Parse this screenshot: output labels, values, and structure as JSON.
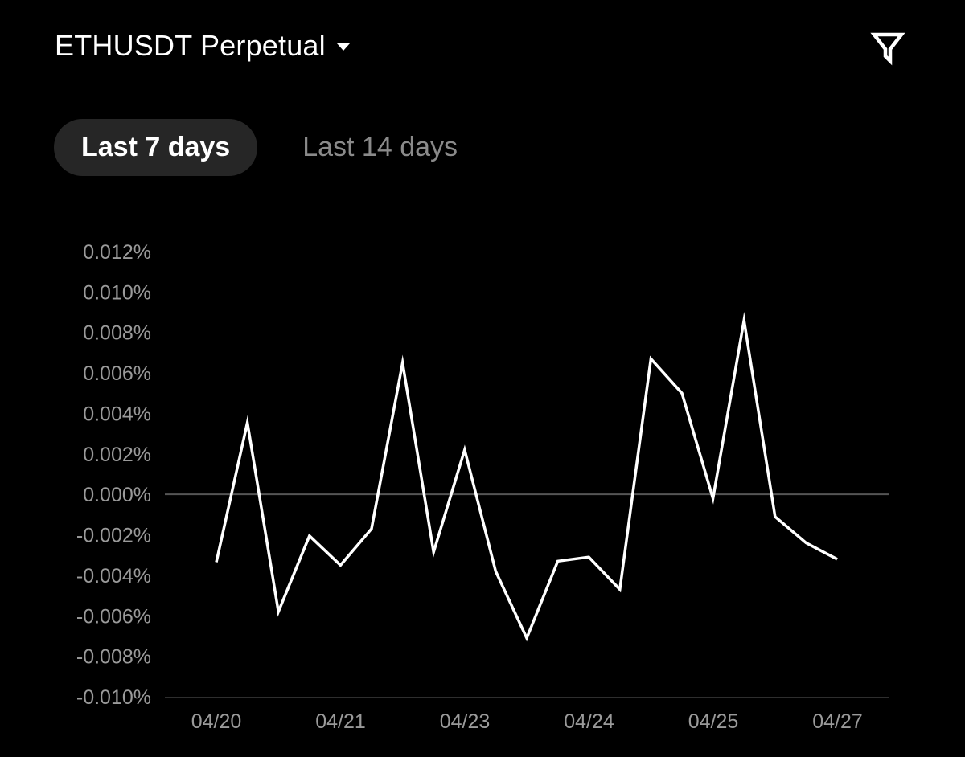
{
  "header": {
    "title": "ETHUSDT Perpetual",
    "dropdown_icon": "caret-down-icon",
    "filter_icon": "filter-icon"
  },
  "tabs": [
    {
      "label": "Last 7 days",
      "active": true
    },
    {
      "label": "Last 14 days",
      "active": false
    }
  ],
  "colors": {
    "background": "#000000",
    "line": "#ffffff",
    "zero_line": "#555555",
    "tick_text": "#9a9a9a",
    "active_tab_bg": "#262626"
  },
  "chart_data": {
    "type": "line",
    "title": "",
    "xlabel": "",
    "ylabel": "",
    "ylim": [
      -0.01,
      0.012
    ],
    "y_ticks": [
      "0.012%",
      "0.010%",
      "0.008%",
      "0.006%",
      "0.004%",
      "0.002%",
      "0.000%",
      "-0.002%",
      "-0.004%",
      "-0.006%",
      "-0.008%",
      "-0.010%"
    ],
    "x_ticks": [
      "04/20",
      "04/21",
      "04/23",
      "04/24",
      "04/25",
      "04/27"
    ],
    "grid": false,
    "series": [
      {
        "values": [
          -0.00335,
          0.00355,
          -0.0058,
          -0.00205,
          -0.0035,
          -0.0017,
          0.0065,
          -0.00285,
          0.0022,
          -0.0038,
          -0.0071,
          -0.0033,
          -0.0031,
          -0.0047,
          0.0067,
          0.005,
          -0.0002,
          0.0086,
          -0.0011,
          -0.0024,
          -0.0032
        ]
      }
    ]
  }
}
